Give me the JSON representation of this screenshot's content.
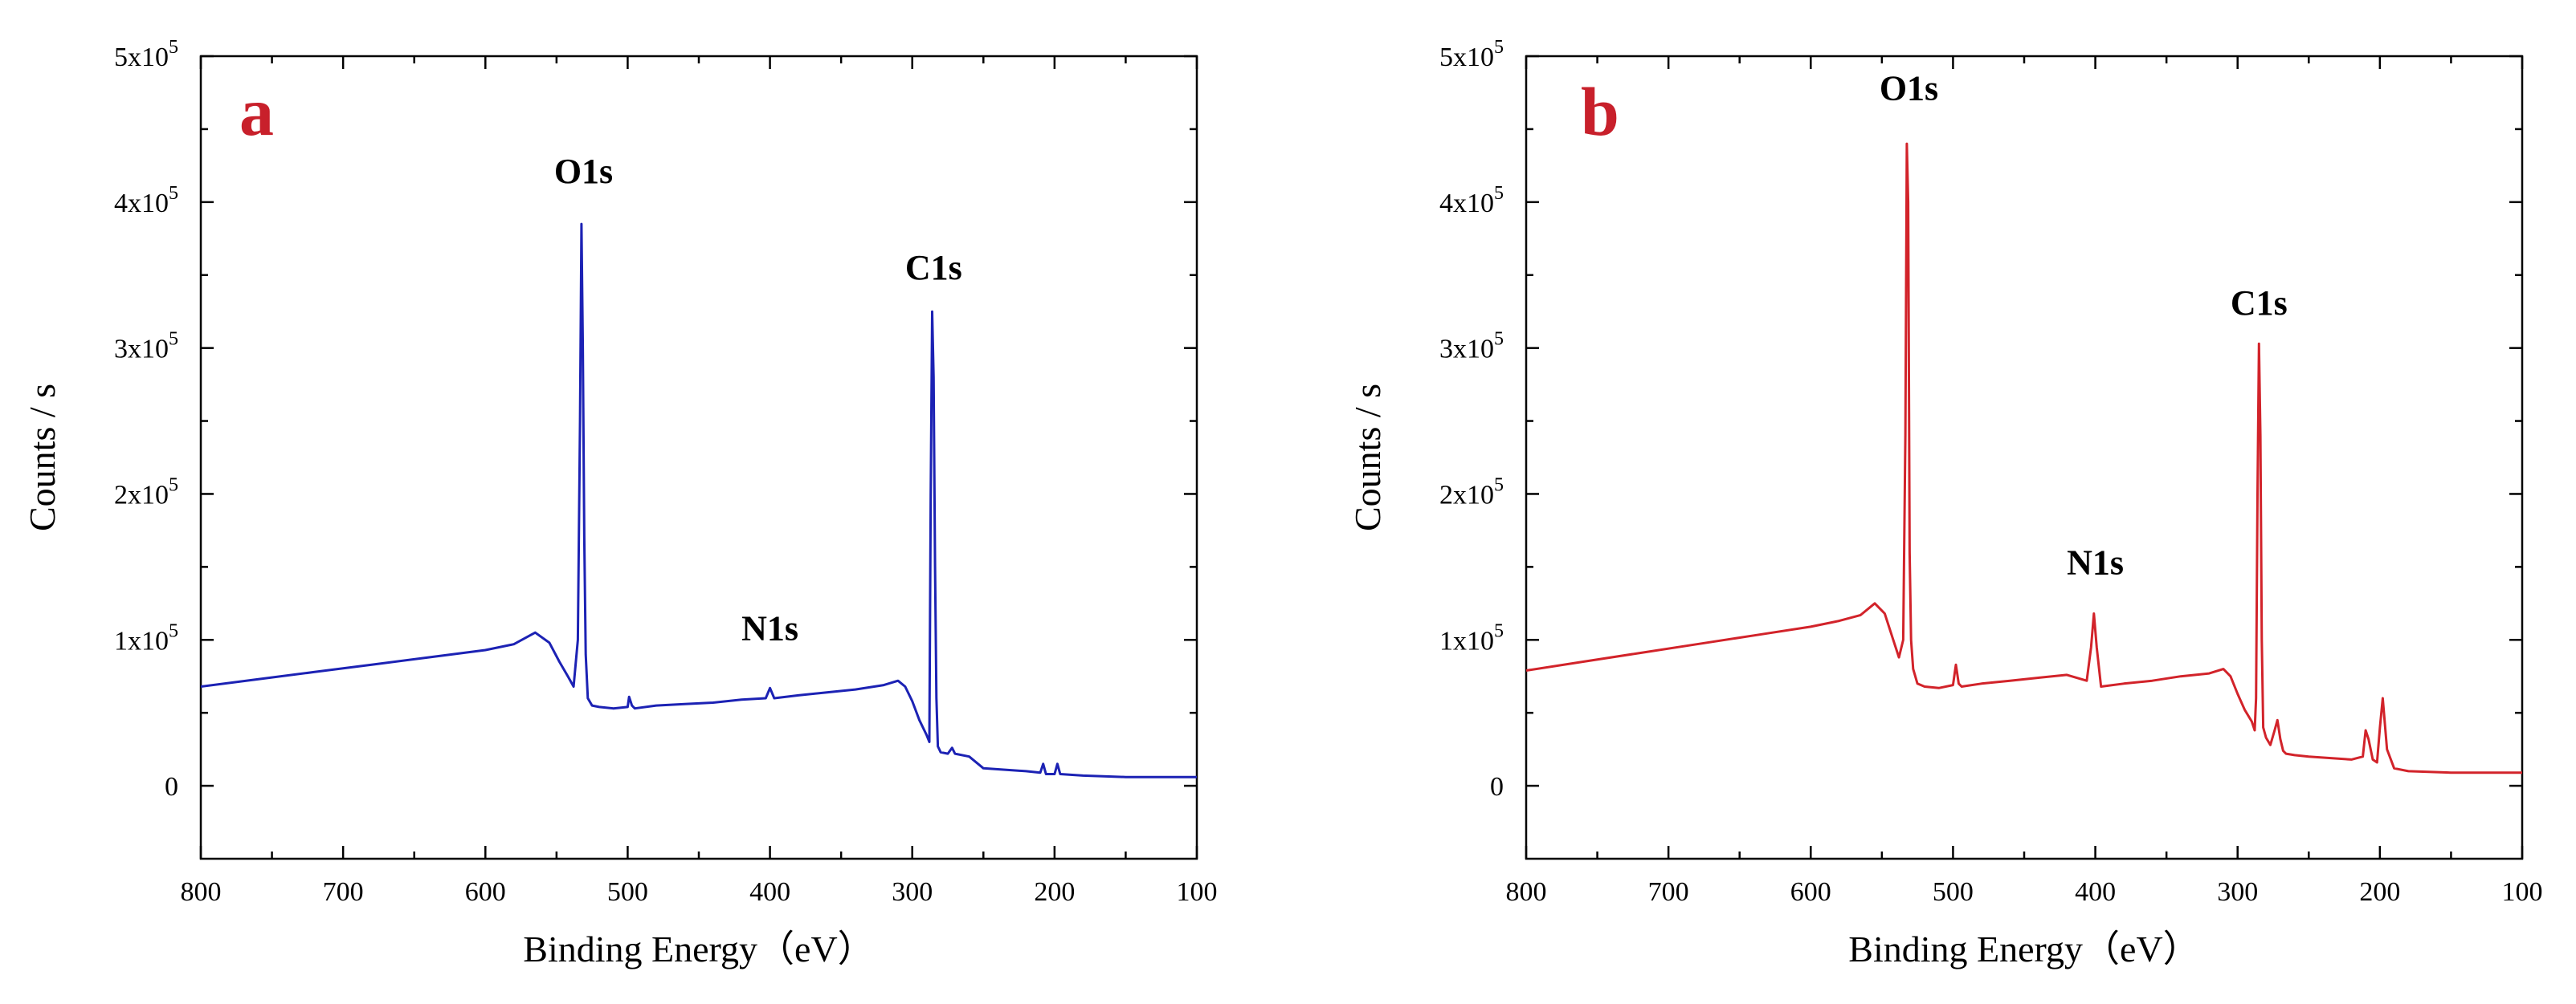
{
  "chart_data": [
    {
      "type": "line",
      "panel_label": "a",
      "xlabel": "Binding Energy（eV）",
      "ylabel": "Counts / s",
      "xlim": [
        800,
        100
      ],
      "x_reversed": true,
      "ylim": [
        -50000,
        500000
      ],
      "x_ticks": [
        800,
        700,
        600,
        500,
        400,
        300,
        200,
        100
      ],
      "y_ticks": [
        {
          "value": 0,
          "mantissa": "0",
          "exp": ""
        },
        {
          "value": 100000,
          "mantissa": "1x10",
          "exp": "5"
        },
        {
          "value": 200000,
          "mantissa": "2x10",
          "exp": "5"
        },
        {
          "value": 300000,
          "mantissa": "3x10",
          "exp": "5"
        },
        {
          "value": 400000,
          "mantissa": "4x10",
          "exp": "5"
        },
        {
          "value": 500000,
          "mantissa": "5x10",
          "exp": "5"
        }
      ],
      "grid": false,
      "color": "#1c22b4",
      "annotations": [
        {
          "text": "O1s",
          "x": 531,
          "y": 413000
        },
        {
          "text": "N1s",
          "x": 400,
          "y": 100000
        },
        {
          "text": "C1s",
          "x": 285,
          "y": 347000
        }
      ],
      "series": [
        {
          "x": [
            800,
            760,
            720,
            680,
            640,
            600,
            580,
            565,
            555,
            548,
            542,
            538,
            535,
            533.5,
            532.5,
            531.5,
            530.5,
            529.5,
            528,
            525,
            520,
            510,
            500,
            499,
            497,
            495,
            480,
            460,
            440,
            420,
            403,
            400,
            397,
            380,
            360,
            340,
            320,
            310,
            305,
            300,
            295,
            290,
            288,
            287,
            286,
            285,
            284,
            283,
            282,
            280,
            275,
            272,
            270,
            260,
            250,
            220,
            210,
            208,
            206,
            200,
            198,
            196,
            180,
            150,
            120,
            100
          ],
          "y": [
            68000,
            73000,
            78000,
            83000,
            88000,
            93000,
            97000,
            105000,
            98000,
            85000,
            75000,
            68000,
            100000,
            250000,
            385000,
            300000,
            170000,
            90000,
            60000,
            55000,
            54000,
            53000,
            54000,
            61000,
            55000,
            53000,
            55000,
            56000,
            57000,
            59000,
            60000,
            67000,
            60000,
            62000,
            64000,
            66000,
            69000,
            72000,
            68000,
            58000,
            45000,
            35000,
            30000,
            200000,
            325000,
            280000,
            150000,
            60000,
            27000,
            23000,
            22000,
            26000,
            22000,
            20000,
            12000,
            10000,
            9000,
            15000,
            8000,
            8000,
            15000,
            8000,
            7000,
            6000,
            6000,
            6000
          ]
        }
      ]
    },
    {
      "type": "line",
      "panel_label": "b",
      "xlabel": "Binding Energy（eV）",
      "ylabel": "Counts / s",
      "xlim": [
        800,
        100
      ],
      "x_reversed": true,
      "ylim": [
        -50000,
        500000
      ],
      "x_ticks": [
        800,
        700,
        600,
        500,
        400,
        300,
        200,
        100
      ],
      "y_ticks": [
        {
          "value": 0,
          "mantissa": "0",
          "exp": ""
        },
        {
          "value": 100000,
          "mantissa": "1x10",
          "exp": "5"
        },
        {
          "value": 200000,
          "mantissa": "2x10",
          "exp": "5"
        },
        {
          "value": 300000,
          "mantissa": "3x10",
          "exp": "5"
        },
        {
          "value": 400000,
          "mantissa": "4x10",
          "exp": "5"
        },
        {
          "value": 500000,
          "mantissa": "5x10",
          "exp": "5"
        }
      ],
      "grid": false,
      "color": "#d2232a",
      "annotations": [
        {
          "text": "O1s",
          "x": 531,
          "y": 470000
        },
        {
          "text": "N1s",
          "x": 400,
          "y": 145000
        },
        {
          "text": "C1s",
          "x": 285,
          "y": 323000
        }
      ],
      "series": [
        {
          "x": [
            800,
            760,
            720,
            680,
            640,
            600,
            580,
            565,
            555,
            548,
            542,
            538,
            535,
            533.5,
            532.5,
            531.5,
            530.5,
            529.5,
            528,
            525,
            520,
            510,
            500,
            498,
            496,
            494,
            480,
            460,
            440,
            420,
            406,
            403,
            401,
            399,
            396,
            380,
            360,
            340,
            320,
            310,
            305,
            300,
            295,
            290,
            288,
            287,
            286,
            285,
            284,
            283,
            282,
            280,
            277,
            274,
            272,
            270,
            268,
            266,
            260,
            250,
            220,
            212,
            210,
            208,
            205,
            202,
            200,
            198,
            195,
            190,
            180,
            150,
            120,
            100
          ],
          "y": [
            79000,
            85000,
            91000,
            97000,
            103000,
            109000,
            113000,
            117000,
            125000,
            118000,
            100000,
            88000,
            100000,
            240000,
            440000,
            400000,
            160000,
            100000,
            80000,
            70000,
            68000,
            67000,
            69000,
            83000,
            70000,
            68000,
            70000,
            72000,
            74000,
            76000,
            72000,
            95000,
            118000,
            95000,
            68000,
            70000,
            72000,
            75000,
            77000,
            80000,
            75000,
            63000,
            52000,
            44000,
            38000,
            60000,
            200000,
            303000,
            240000,
            100000,
            40000,
            33000,
            28000,
            38000,
            45000,
            32000,
            24000,
            22000,
            21000,
            20000,
            18000,
            20000,
            38000,
            32000,
            18000,
            16000,
            40000,
            60000,
            25000,
            12000,
            10000,
            9000,
            9000,
            9000
          ]
        }
      ]
    }
  ]
}
